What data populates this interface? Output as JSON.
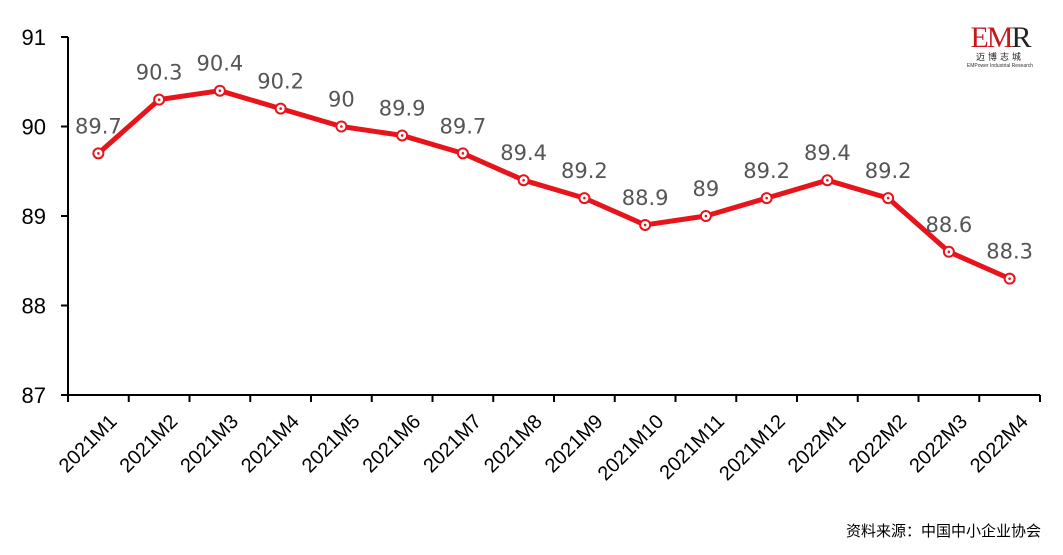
{
  "chart_data": {
    "type": "line",
    "categories": [
      "2021M1",
      "2021M2",
      "2021M3",
      "2021M4",
      "2021M5",
      "2021M6",
      "2021M7",
      "2021M8",
      "2021M9",
      "2021M10",
      "2021M11",
      "2021M12",
      "2022M1",
      "2022M2",
      "2022M3",
      "2022M4"
    ],
    "values": [
      89.7,
      90.3,
      90.4,
      90.2,
      90,
      89.9,
      89.7,
      89.4,
      89.2,
      88.9,
      89,
      89.2,
      89.4,
      89.2,
      88.6,
      88.3
    ],
    "value_labels": [
      "89.7",
      "90.3",
      "90.4",
      "90.2",
      "90",
      "89.9",
      "89.7",
      "89.4",
      "89.2",
      "88.9",
      "89",
      "89.2",
      "89.4",
      "89.2",
      "88.6",
      "88.3"
    ],
    "ylim": [
      87,
      91
    ],
    "yticks": [
      "87",
      "88",
      "89",
      "90",
      "91"
    ],
    "title": "",
    "xlabel": "",
    "ylabel": "",
    "line_color": "#e8141b",
    "grid": false
  },
  "logo": {
    "mark": "EMR",
    "cn": "迈博志城",
    "en": "EMPower Industrial Research"
  },
  "source": "资料来源：中国中小企业协会"
}
